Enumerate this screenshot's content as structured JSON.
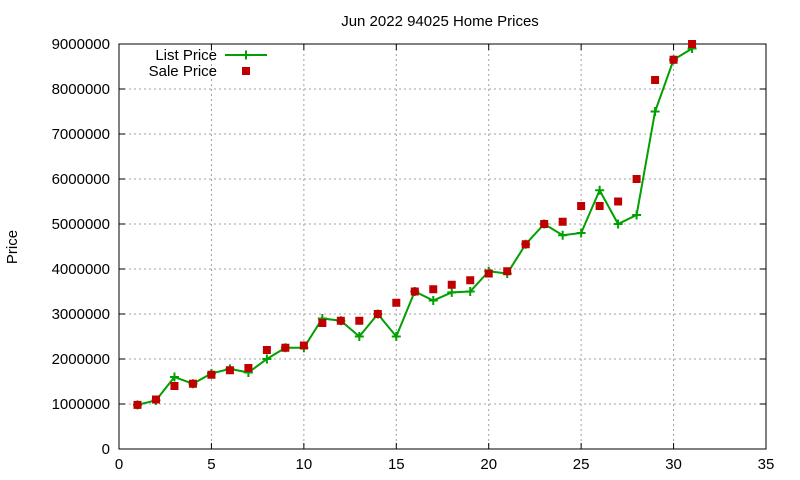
{
  "chart_data": {
    "type": "line",
    "title": "Jun 2022 94025 Home Prices",
    "xlabel": "",
    "ylabel": "Price",
    "xlim": [
      0,
      35
    ],
    "ylim": [
      0,
      9000000
    ],
    "x_ticks": [
      0,
      5,
      10,
      15,
      20,
      25,
      30,
      35
    ],
    "y_ticks": [
      0,
      1000000,
      2000000,
      3000000,
      4000000,
      5000000,
      6000000,
      7000000,
      8000000,
      9000000
    ],
    "grid": true,
    "legend_position": "top-left",
    "series": [
      {
        "name": "List Price",
        "style": "linespoints",
        "marker": "plus",
        "color": "#00a000",
        "x": [
          1,
          2,
          3,
          4,
          5,
          6,
          7,
          8,
          9,
          10,
          11,
          12,
          13,
          14,
          15,
          16,
          17,
          18,
          19,
          20,
          21,
          22,
          23,
          24,
          25,
          26,
          27,
          28,
          29,
          30,
          31
        ],
        "values": [
          980000,
          1080000,
          1600000,
          1450000,
          1680000,
          1780000,
          1700000,
          2000000,
          2250000,
          2250000,
          2900000,
          2850000,
          2500000,
          3000000,
          2500000,
          3500000,
          3300000,
          3480000,
          3500000,
          3950000,
          3900000,
          4550000,
          5000000,
          4750000,
          4800000,
          5750000,
          5000000,
          5200000,
          7500000,
          8650000,
          8900000
        ]
      },
      {
        "name": "Sale Price",
        "style": "points",
        "marker": "square",
        "color": "#c00000",
        "x": [
          1,
          2,
          3,
          4,
          5,
          6,
          7,
          8,
          9,
          10,
          11,
          12,
          13,
          14,
          15,
          16,
          17,
          18,
          19,
          20,
          21,
          22,
          23,
          24,
          25,
          26,
          27,
          28,
          29,
          30,
          31
        ],
        "values": [
          980000,
          1100000,
          1400000,
          1450000,
          1650000,
          1750000,
          1800000,
          2200000,
          2250000,
          2300000,
          2800000,
          2850000,
          2850000,
          3000000,
          3250000,
          3500000,
          3550000,
          3650000,
          3750000,
          3900000,
          3950000,
          4550000,
          5000000,
          5050000,
          5400000,
          5400000,
          5500000,
          6000000,
          8200000,
          8650000,
          9000000
        ]
      }
    ]
  }
}
